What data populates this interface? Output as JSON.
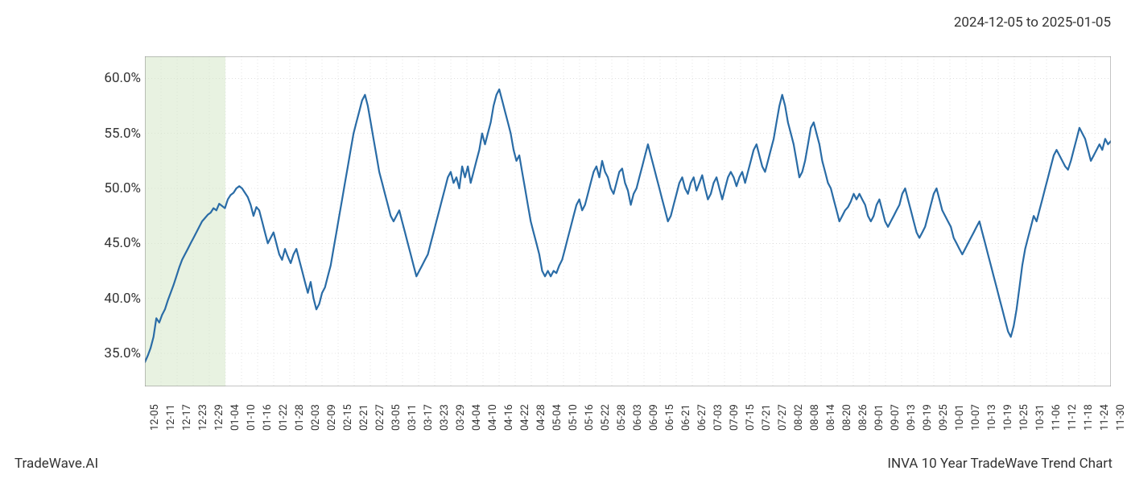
{
  "date_range": "2024-12-05 to 2025-01-05",
  "footer_left": "TradeWave.AI",
  "footer_right": "INVA 10 Year TradeWave Trend Chart",
  "chart": {
    "type": "line",
    "line_color": "#2a6ca6",
    "line_width": 2.2,
    "background_color": "#ffffff",
    "grid_color": "#cccccc",
    "axis_color": "#888888",
    "highlight_fill": "#d5e8c9",
    "highlight_opacity": 0.55,
    "label_fontsize": 17,
    "xtick_fontsize": 13,
    "ylim": [
      32,
      62
    ],
    "yticks": [
      35.0,
      40.0,
      45.0,
      50.0,
      55.0,
      60.0
    ],
    "ytick_labels": [
      "35.0%",
      "40.0%",
      "45.0%",
      "50.0%",
      "55.0%",
      "60.0%"
    ],
    "x_labels": [
      "12-05",
      "12-11",
      "12-17",
      "12-23",
      "12-29",
      "01-04",
      "01-10",
      "01-16",
      "01-22",
      "01-28",
      "02-03",
      "02-09",
      "02-15",
      "02-21",
      "02-27",
      "03-05",
      "03-11",
      "03-17",
      "03-23",
      "03-29",
      "04-04",
      "04-10",
      "04-16",
      "04-22",
      "04-28",
      "05-04",
      "05-10",
      "05-16",
      "05-22",
      "05-28",
      "06-03",
      "06-09",
      "06-15",
      "06-21",
      "06-27",
      "07-03",
      "07-09",
      "07-15",
      "07-21",
      "07-27",
      "08-02",
      "08-08",
      "08-14",
      "08-20",
      "08-26",
      "09-01",
      "09-07",
      "09-13",
      "09-19",
      "09-25",
      "10-01",
      "10-07",
      "10-13",
      "10-19",
      "10-25",
      "10-31",
      "11-06",
      "11-12",
      "11-18",
      "11-24",
      "11-30"
    ],
    "highlight_start_index": 0,
    "highlight_end_index": 5,
    "values": [
      34.2,
      34.8,
      35.5,
      36.5,
      38.2,
      37.8,
      38.5,
      39.0,
      39.8,
      40.5,
      41.2,
      42.0,
      42.8,
      43.5,
      44.0,
      44.5,
      45.0,
      45.5,
      46.0,
      46.5,
      47.0,
      47.3,
      47.6,
      47.8,
      48.2,
      48.0,
      48.6,
      48.4,
      48.2,
      49.0,
      49.4,
      49.6,
      50.0,
      50.2,
      50.0,
      49.6,
      49.2,
      48.5,
      47.5,
      48.3,
      48.0,
      47.0,
      46.0,
      45.0,
      45.5,
      46.0,
      45.0,
      44.0,
      43.5,
      44.5,
      43.8,
      43.2,
      44.0,
      44.5,
      43.5,
      42.5,
      41.5,
      40.5,
      41.5,
      40.0,
      39.0,
      39.5,
      40.5,
      41.0,
      42.0,
      43.0,
      44.5,
      46.0,
      47.5,
      49.0,
      50.5,
      52.0,
      53.5,
      55.0,
      56.0,
      57.0,
      58.0,
      58.5,
      57.5,
      56.0,
      54.5,
      53.0,
      51.5,
      50.5,
      49.5,
      48.5,
      47.5,
      47.0,
      47.5,
      48.0,
      47.0,
      46.0,
      45.0,
      44.0,
      43.0,
      42.0,
      42.5,
      43.0,
      43.5,
      44.0,
      45.0,
      46.0,
      47.0,
      48.0,
      49.0,
      50.0,
      51.0,
      51.5,
      50.5,
      51.0,
      50.0,
      52.0,
      51.0,
      52.0,
      50.5,
      51.5,
      52.5,
      53.5,
      55.0,
      54.0,
      55.0,
      56.0,
      57.5,
      58.5,
      59.0,
      58.0,
      57.0,
      56.0,
      55.0,
      53.5,
      52.5,
      53.0,
      51.5,
      50.0,
      48.5,
      47.0,
      46.0,
      45.0,
      44.0,
      42.5,
      42.0,
      42.5,
      42.0,
      42.5,
      42.3,
      43.0,
      43.5,
      44.5,
      45.5,
      46.5,
      47.5,
      48.5,
      49.0,
      48.0,
      48.5,
      49.5,
      50.5,
      51.5,
      52.0,
      51.0,
      52.5,
      51.5,
      51.0,
      50.0,
      49.5,
      50.5,
      51.5,
      51.8,
      50.5,
      49.8,
      48.5,
      49.5,
      50.0,
      51.0,
      52.0,
      53.0,
      54.0,
      53.0,
      52.0,
      51.0,
      50.0,
      49.0,
      48.0,
      47.0,
      47.5,
      48.5,
      49.5,
      50.5,
      51.0,
      50.0,
      49.5,
      50.5,
      51.0,
      49.8,
      50.5,
      51.2,
      50.0,
      49.0,
      49.5,
      50.5,
      51.0,
      50.0,
      49.0,
      50.0,
      51.0,
      51.5,
      51.0,
      50.2,
      51.0,
      51.5,
      50.5,
      51.5,
      52.5,
      53.5,
      54.0,
      53.0,
      52.0,
      51.5,
      52.5,
      53.5,
      54.5,
      56.0,
      57.5,
      58.5,
      57.5,
      56.0,
      55.0,
      54.0,
      52.5,
      51.0,
      51.5,
      52.5,
      54.0,
      55.5,
      56.0,
      55.0,
      54.0,
      52.5,
      51.5,
      50.5,
      50.0,
      49.0,
      48.0,
      47.0,
      47.5,
      48.0,
      48.3,
      48.8,
      49.5,
      49.0,
      49.5,
      49.0,
      48.5,
      47.5,
      47.0,
      47.5,
      48.5,
      49.0,
      48.0,
      47.0,
      46.5,
      47.0,
      47.5,
      48.0,
      48.5,
      49.5,
      50.0,
      49.0,
      48.0,
      47.0,
      46.0,
      45.5,
      46.0,
      46.5,
      47.5,
      48.5,
      49.5,
      50.0,
      49.0,
      48.0,
      47.5,
      47.0,
      46.5,
      45.5,
      45.0,
      44.5,
      44.0,
      44.5,
      45.0,
      45.5,
      46.0,
      46.5,
      47.0,
      46.0,
      45.0,
      44.0,
      43.0,
      42.0,
      41.0,
      40.0,
      39.0,
      38.0,
      37.0,
      36.5,
      37.5,
      39.0,
      41.0,
      43.0,
      44.5,
      45.5,
      46.5,
      47.5,
      47.0,
      48.0,
      49.0,
      50.0,
      51.0,
      52.0,
      53.0,
      53.5,
      53.0,
      52.5,
      52.0,
      51.7,
      52.5,
      53.5,
      54.5,
      55.5,
      55.0,
      54.5,
      53.5,
      52.5,
      53.0,
      53.5,
      54.0,
      53.5,
      54.5,
      54.0,
      54.3
    ]
  }
}
